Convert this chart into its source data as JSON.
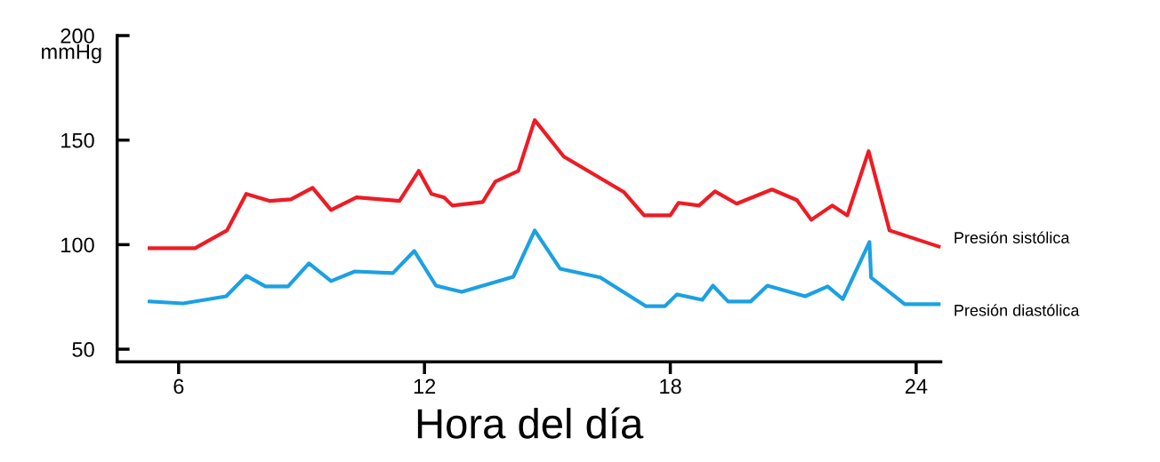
{
  "chart_data": {
    "type": "line",
    "xlabel": "Hora del día",
    "ylabel": "mmHg",
    "xlim": [
      4.5,
      24.6
    ],
    "ylim": [
      44,
      200
    ],
    "xticks": [
      6,
      12,
      18,
      24
    ],
    "yticks": [
      50,
      100,
      150,
      200
    ],
    "grid": false,
    "legend": false,
    "marker": "none",
    "line_style": "solid",
    "series": [
      {
        "name": "Presión sistólica",
        "color": "#ed1c24",
        "x": [
          5.29,
          6.4,
          7.18,
          7.65,
          8.23,
          8.74,
          9.27,
          9.72,
          10.34,
          11.39,
          11.86,
          12.17,
          12.48,
          12.68,
          13.42,
          13.73,
          14.29,
          14.69,
          15.4,
          16.87,
          17.36,
          18.0,
          18.2,
          18.7,
          19.09,
          19.62,
          20.48,
          21.09,
          21.44,
          21.95,
          22.32,
          22.84,
          23.35,
          24.55
        ],
        "values": [
          98.3,
          98.3,
          106.8,
          124.3,
          120.9,
          121.7,
          127.2,
          116.6,
          122.6,
          120.9,
          135.3,
          124.3,
          122.6,
          118.7,
          120.4,
          130.2,
          135.3,
          159.6,
          142.1,
          125.1,
          114.0,
          114.0,
          120.0,
          118.7,
          125.5,
          119.6,
          126.4,
          121.3,
          111.9,
          118.7,
          114.0,
          144.7,
          106.8,
          99.1
        ]
      },
      {
        "name": "Presión diastólica",
        "color": "#1ba1e2",
        "x": [
          5.29,
          6.11,
          7.16,
          7.65,
          8.12,
          8.67,
          9.18,
          9.72,
          10.3,
          11.23,
          11.75,
          12.28,
          12.91,
          14.17,
          14.69,
          15.31,
          16.29,
          17.4,
          17.87,
          18.16,
          18.78,
          19.04,
          19.41,
          19.96,
          20.37,
          21.29,
          21.84,
          22.21,
          22.86,
          22.9,
          23.72,
          24.55
        ],
        "values": [
          72.8,
          71.9,
          75.3,
          85.1,
          80.0,
          80.0,
          91.1,
          82.6,
          87.2,
          86.4,
          97.0,
          80.4,
          77.4,
          84.7,
          106.8,
          88.5,
          84.3,
          70.6,
          70.6,
          76.2,
          73.6,
          80.4,
          72.8,
          72.8,
          80.4,
          75.3,
          80.0,
          74.0,
          101.3,
          84.3,
          71.5,
          71.5
        ]
      }
    ]
  }
}
